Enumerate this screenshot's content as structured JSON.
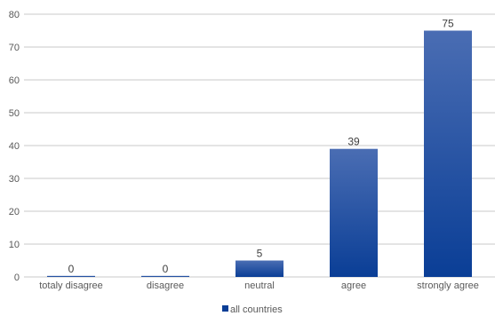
{
  "chart_data": {
    "type": "bar",
    "categories": [
      "totaly disagree",
      "disagree",
      "neutral",
      "agree",
      "strongly agree"
    ],
    "series": [
      {
        "name": "all countries",
        "values": [
          0,
          0,
          5,
          39,
          75
        ]
      }
    ],
    "title": "",
    "xlabel": "",
    "ylabel": "",
    "ylim": [
      0,
      80
    ],
    "yticks": [
      0,
      10,
      20,
      30,
      40,
      50,
      60,
      70,
      80
    ],
    "grid": true,
    "legend": "bottom",
    "colors": {
      "bar_top": "#4a6db3",
      "bar_bottom": "#0a3e96",
      "grid": "#c8c8c8",
      "text": "#595959"
    }
  }
}
